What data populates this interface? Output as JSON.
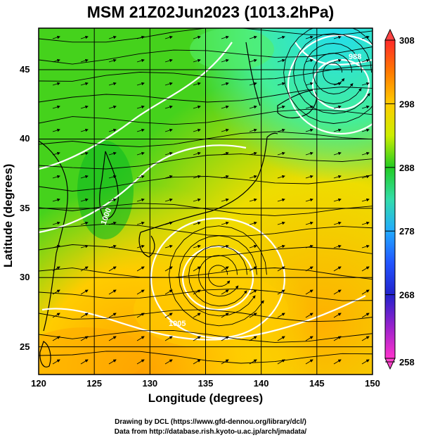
{
  "title": "MSM 21Z02Jun2023 (1013.2hPa)",
  "axes": {
    "xlabel": "Longitude (degrees)",
    "ylabel": "Latitude  (degrees)",
    "x_ticks": [
      "120",
      "125",
      "130",
      "135",
      "140",
      "145",
      "150"
    ],
    "y_ticks": [
      "25",
      "30",
      "35",
      "40",
      "45"
    ]
  },
  "colorbar": {
    "ticks": [
      "308",
      "298",
      "288",
      "278",
      "268",
      "258"
    ],
    "colors": [
      "#ff2a2a",
      "#ff7a00",
      "#ffcc00",
      "#ccee00",
      "#22cc22",
      "#33ddaa",
      "#22aaff",
      "#2255ff",
      "#2222cc",
      "#9922cc",
      "#ff33cc"
    ]
  },
  "chart_data": {
    "type": "heatmap",
    "x_range": [
      120,
      150
    ],
    "y_range": [
      23,
      48
    ],
    "x_ticks": [
      120,
      125,
      130,
      135,
      140,
      145,
      150
    ],
    "y_ticks": [
      25,
      30,
      35,
      40,
      45
    ],
    "color_range": [
      258,
      308
    ],
    "color_ticks": [
      308,
      298,
      288,
      278,
      268,
      258
    ],
    "contour_labels": [
      "1000",
      "1005",
      "988"
    ],
    "cyclone_centers": [
      {
        "lon": 136.2,
        "lat": 30.2
      },
      {
        "lon": 146.5,
        "lat": 44.8
      }
    ]
  },
  "credits": {
    "line1": "Drawing by DCL (https://www.gfd-dennou.org/library/dcl/)",
    "line2": "Data from http://database.rish.kyoto-u.ac.jp/arch/jmadata/"
  }
}
